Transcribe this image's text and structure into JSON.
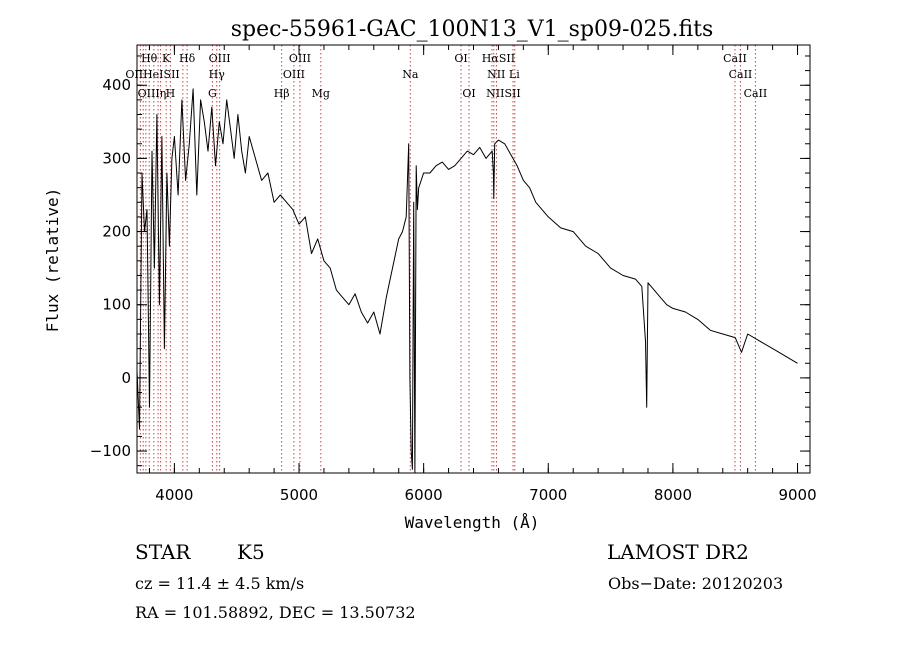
{
  "chart_data": {
    "type": "line",
    "title": "spec-55961-GAC_100N13_V1_sp09-025.fits",
    "xlabel": "Wavelength (Å)",
    "ylabel": "Flux (relative)",
    "xlim": [
      3700,
      9100
    ],
    "ylim": [
      -130,
      455
    ],
    "x_ticks": [
      4000,
      5000,
      6000,
      7000,
      8000,
      9000
    ],
    "y_ticks": [
      -100,
      0,
      100,
      200,
      300,
      400
    ],
    "grid": false,
    "series": [
      {
        "x": [
          3700,
          3720,
          3740,
          3760,
          3780,
          3800,
          3820,
          3840,
          3860,
          3880,
          3900,
          3920,
          3940,
          3960,
          3980,
          4000,
          4030,
          4060,
          4090,
          4120,
          4150,
          4180,
          4210,
          4240,
          4270,
          4300,
          4330,
          4360,
          4390,
          4420,
          4450,
          4480,
          4510,
          4540,
          4570,
          4600,
          4650,
          4700,
          4750,
          4800,
          4850,
          4900,
          4950,
          5000,
          5050,
          5100,
          5150,
          5200,
          5250,
          5300,
          5350,
          5400,
          5450,
          5500,
          5550,
          5600,
          5650,
          5700,
          5750,
          5800,
          5830,
          5860,
          5880,
          5890,
          5900,
          5910,
          5920,
          5930,
          5940,
          5950,
          5960,
          5980,
          6000,
          6050,
          6100,
          6150,
          6200,
          6250,
          6300,
          6350,
          6400,
          6450,
          6500,
          6550,
          6560,
          6563,
          6570,
          6600,
          6650,
          6700,
          6750,
          6800,
          6850,
          6900,
          6950,
          7000,
          7100,
          7200,
          7300,
          7400,
          7500,
          7600,
          7700,
          7750,
          7780,
          7790,
          7800,
          7850,
          7900,
          7950,
          8000,
          8100,
          8200,
          8300,
          8400,
          8500,
          8550,
          8600,
          8700,
          8800,
          8900,
          9000
        ],
        "y": [
          10,
          -70,
          280,
          200,
          230,
          -40,
          310,
          150,
          360,
          100,
          330,
          40,
          280,
          180,
          300,
          330,
          250,
          380,
          270,
          320,
          395,
          250,
          380,
          350,
          310,
          370,
          290,
          350,
          320,
          380,
          340,
          300,
          360,
          310,
          280,
          330,
          300,
          270,
          280,
          240,
          250,
          240,
          230,
          210,
          220,
          170,
          190,
          160,
          150,
          120,
          110,
          100,
          115,
          90,
          75,
          90,
          60,
          110,
          150,
          190,
          200,
          220,
          320,
          0,
          -100,
          -125,
          240,
          -130,
          290,
          230,
          260,
          270,
          280,
          280,
          290,
          295,
          285,
          290,
          300,
          310,
          305,
          315,
          300,
          310,
          280,
          245,
          320,
          325,
          320,
          305,
          290,
          270,
          260,
          240,
          230,
          220,
          205,
          200,
          180,
          170,
          150,
          140,
          135,
          125,
          50,
          -40,
          130,
          120,
          110,
          100,
          95,
          90,
          80,
          65,
          60,
          55,
          35,
          60,
          50,
          40,
          30,
          20
        ]
      }
    ],
    "line_labels": [
      {
        "text": "Hθ",
        "wl": 3798,
        "row": 0
      },
      {
        "text": "K",
        "wl": 3934,
        "row": 0
      },
      {
        "text": "Hδ",
        "wl": 4102,
        "row": 0
      },
      {
        "text": "OIII",
        "wl": 4363,
        "row": 0
      },
      {
        "text": "OIII",
        "wl": 5007,
        "row": 0
      },
      {
        "text": "OI",
        "wl": 6300,
        "row": 0
      },
      {
        "text": "HαSII",
        "wl": 6600,
        "row": 0
      },
      {
        "text": "CaII",
        "wl": 8498,
        "row": 0
      },
      {
        "text": "OIIHeISII",
        "wl": 3825,
        "row": 1
      },
      {
        "text": "Hγ",
        "wl": 4340,
        "row": 1
      },
      {
        "text": "OIII",
        "wl": 4959,
        "row": 1
      },
      {
        "text": "Na",
        "wl": 5893,
        "row": 1
      },
      {
        "text": "NII Li",
        "wl": 6640,
        "row": 1
      },
      {
        "text": "CaII",
        "wl": 8542,
        "row": 1
      },
      {
        "text": "OIIIη",
        "wl": 3820,
        "row": 2
      },
      {
        "text": "H",
        "wl": 3968,
        "row": 2
      },
      {
        "text": "G",
        "wl": 4305,
        "row": 2
      },
      {
        "text": "Hβ",
        "wl": 4861,
        "row": 2
      },
      {
        "text": "Mg",
        "wl": 5175,
        "row": 2
      },
      {
        "text": "OI",
        "wl": 6364,
        "row": 2
      },
      {
        "text": "NIISII",
        "wl": 6640,
        "row": 2
      },
      {
        "text": "CaII",
        "wl": 8662,
        "row": 2
      }
    ],
    "line_markers_wl": [
      3727,
      3750,
      3771,
      3798,
      3835,
      3869,
      3889,
      3934,
      3968,
      4068,
      4102,
      4305,
      4340,
      4363,
      4861,
      4959,
      5007,
      5175,
      5893,
      6300,
      6364,
      6548,
      6563,
      6584,
      6717,
      6731,
      8498,
      8542,
      8662
    ],
    "colors": {
      "spectrum": "#000000",
      "line_marker": "#d04040",
      "frame": "#000000"
    }
  },
  "info": {
    "obj_type": "STAR",
    "obj_class": "K5",
    "survey": "LAMOST DR2",
    "cz": "cz = 11.4 ± 4.5 km/s",
    "obs_date": "Obs−Date: 20120203",
    "coords": "RA = 101.58892, DEC =  13.50732"
  }
}
